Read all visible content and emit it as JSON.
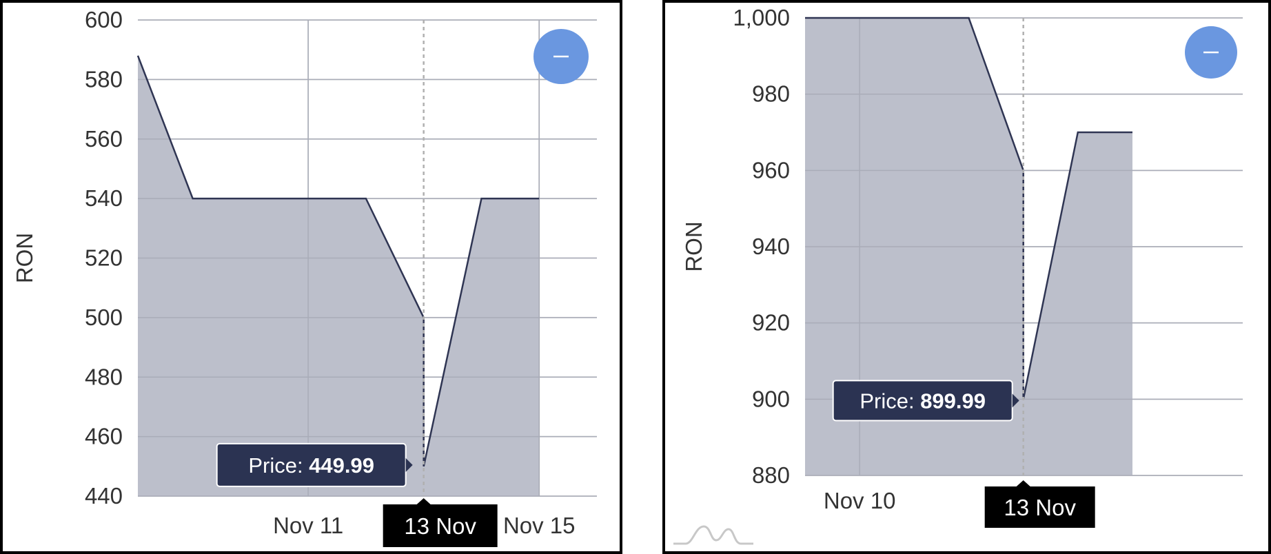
{
  "colors": {
    "area_fill": "#bcbfcb",
    "line": "#2f3553",
    "grid": "#d9d9d9",
    "tooltip_bg": "#2b3352",
    "date_bg": "#000000",
    "button": "#6a97e0"
  },
  "chart_data": [
    {
      "type": "area",
      "ylabel": "RON",
      "ylim": [
        440,
        600
      ],
      "yticks": [
        "600",
        "580",
        "560",
        "540",
        "520",
        "500",
        "480",
        "460",
        "440"
      ],
      "xticks": [
        {
          "date": "2023-11-11",
          "label": "Nov 11"
        },
        {
          "date": "2023-11-15",
          "label": "Nov 15"
        }
      ],
      "xrange": [
        "2023-11-08T01:12",
        "2023-11-16T00:00"
      ],
      "series": [
        {
          "x": [
            "2023-11-08T01:12",
            "2023-11-09",
            "2023-11-11",
            "2023-11-12",
            "2023-11-13",
            "2023-11-13",
            "2023-11-14",
            "2023-11-15"
          ],
          "y": [
            588,
            540,
            540,
            540,
            500,
            450,
            540,
            540
          ]
        }
      ],
      "hover": {
        "date": "2023-11-13",
        "value": 449.99,
        "price_label": "Price:",
        "price_value": "449.99",
        "date_label": "13 Nov"
      },
      "grid": true,
      "zoom_button_icon": "minus-icon"
    },
    {
      "type": "area",
      "ylabel": "RON",
      "ylim": [
        880,
        1000
      ],
      "yticks": [
        "1,000",
        "980",
        "960",
        "940",
        "920",
        "900",
        "880"
      ],
      "xticks": [
        {
          "date": "2023-11-10",
          "label": "Nov 10"
        }
      ],
      "xrange": [
        "2023-11-09",
        "2023-11-17T00:30"
      ],
      "series": [
        {
          "x": [
            "2023-11-09",
            "2023-11-12",
            "2023-11-13",
            "2023-11-13",
            "2023-11-14",
            "2023-11-15"
          ],
          "y": [
            1000,
            1000,
            960,
            900,
            970,
            970
          ]
        }
      ],
      "hover": {
        "date": "2023-11-13",
        "value": 899.99,
        "price_label": "Price:",
        "price_value": "899.99",
        "date_label": "13 Nov"
      },
      "grid": true,
      "zoom_button_icon": "minus-icon",
      "watermark_icon": "chart-logo-icon"
    }
  ]
}
